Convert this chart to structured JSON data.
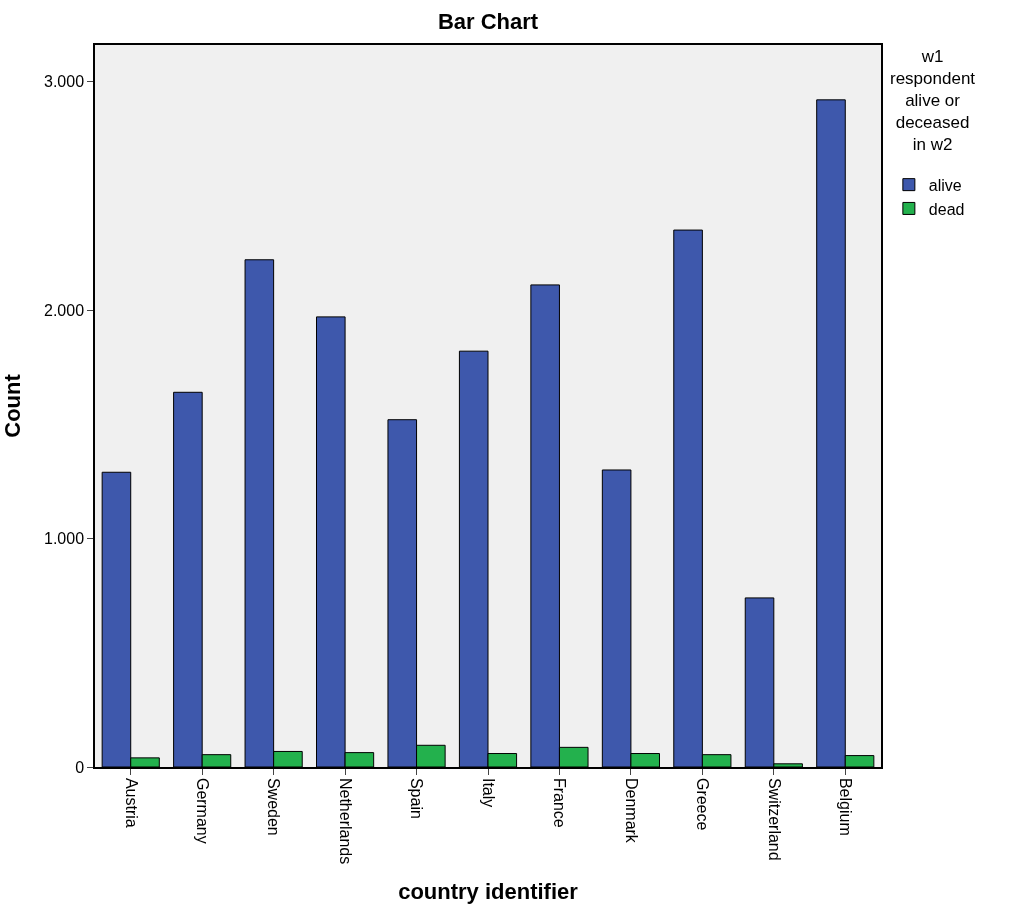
{
  "chart_data": {
    "type": "bar",
    "title": "Bar Chart",
    "xlabel": "country identifier",
    "ylabel": "Count",
    "legend_title": "w1 respondent alive or deceased in w2",
    "categories": [
      "Austria",
      "Germany",
      "Sweden",
      "Netherlands",
      "Spain",
      "Italy",
      "France",
      "Denmark",
      "Greece",
      "Switzerland",
      "Belgium"
    ],
    "series": [
      {
        "name": "alive",
        "color": "#3e58ac",
        "values": [
          1290,
          1640,
          2220,
          1970,
          1520,
          1820,
          2110,
          1300,
          2350,
          740,
          2920
        ]
      },
      {
        "name": "dead",
        "color": "#23b14d",
        "values": [
          40,
          54,
          68,
          63,
          95,
          59,
          86,
          59,
          54,
          14,
          50
        ]
      }
    ],
    "ylim": [
      0,
      3160
    ],
    "yticks": [
      {
        "value": 0,
        "label": "0"
      },
      {
        "value": 1000,
        "label": "1.000"
      },
      {
        "value": 2000,
        "label": "2.000"
      },
      {
        "value": 3000,
        "label": "3.000"
      }
    ],
    "grid": false,
    "legend": "top right"
  }
}
